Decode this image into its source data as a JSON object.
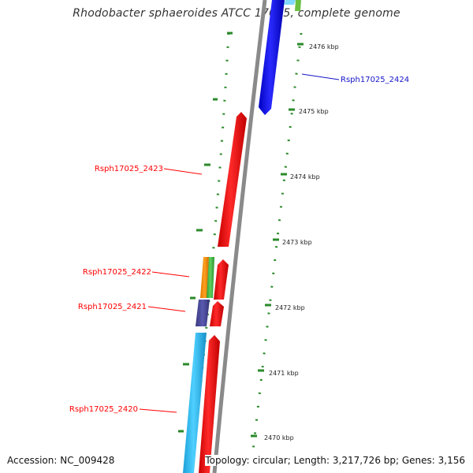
{
  "title": "Rhodobacter sphaeroides ATCC 17025, complete genome",
  "accession_text": "Accession: NC_009428",
  "summary_text": "Topology: circular; Length: 3,217,726 bp; Genes: 3,156",
  "colors": {
    "backbone": "#888888",
    "tick": "#2a8a2a",
    "label_red": "#ff0000",
    "label_blue": "#1515c8"
  },
  "ticks": [
    "2476 kbp",
    "2475 kbp",
    "2474 kbp",
    "2473 kbp",
    "2472 kbp",
    "2471 kbp",
    "2470 kbp"
  ],
  "gene_labels": [
    "Rsph17025_2424",
    "Rsph17025_2423",
    "Rsph17025_2422",
    "Rsph17025_2421",
    "Rsph17025_2420"
  ]
}
